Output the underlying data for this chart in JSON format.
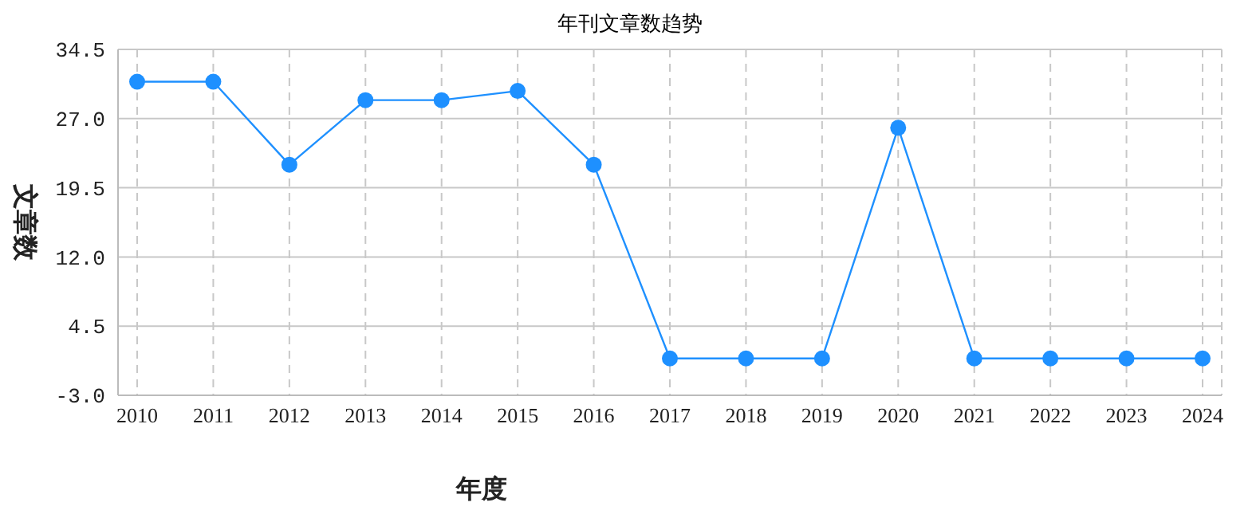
{
  "chart_data": {
    "type": "line",
    "title": "年刊文章数趋势",
    "xlabel": "年度",
    "ylabel": "文章数",
    "categories": [
      "2010",
      "2011",
      "2012",
      "2013",
      "2014",
      "2015",
      "2016",
      "2017",
      "2018",
      "2019",
      "2020",
      "2021",
      "2022",
      "2023",
      "2024"
    ],
    "series": [
      {
        "color": "#1e90ff",
        "values": [
          31,
          31,
          22,
          29,
          29,
          30,
          22,
          1,
          1,
          1,
          26,
          1,
          1,
          1,
          1
        ]
      }
    ],
    "ylim": [
      -3,
      34.5
    ],
    "yticks": [
      {
        "value": -3,
        "label": "-3.0"
      },
      {
        "value": 4.5,
        "label": "4.5"
      },
      {
        "value": 12,
        "label": "12.0"
      },
      {
        "value": 19.5,
        "label": "19.5"
      },
      {
        "value": 27,
        "label": "27.0"
      },
      {
        "value": 34.5,
        "label": "34.5"
      }
    ],
    "grid": true,
    "marker": "circle"
  }
}
